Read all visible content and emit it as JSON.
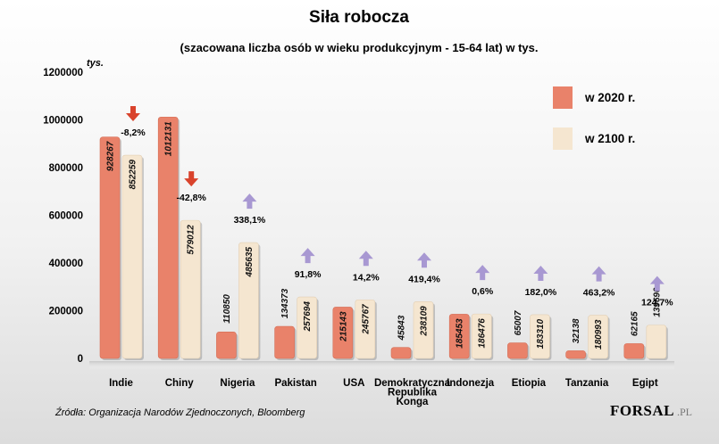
{
  "chart_data": {
    "type": "bar",
    "title": "Siła robocza",
    "subtitle": "(szacowana liczba osób w wieku produkcyjnym - 15-64 lat) w tys.",
    "ylabel": "tys.",
    "ylim": [
      0,
      1200000
    ],
    "yticks": [
      "0",
      "200000",
      "400000",
      "600000",
      "800000",
      "1000000",
      "1200000"
    ],
    "categories": [
      [
        "Indie"
      ],
      [
        "Chiny"
      ],
      [
        "Nigeria"
      ],
      [
        "Pakistan"
      ],
      [
        "USA"
      ],
      [
        "Demokratyczna",
        "Republika",
        "Konga"
      ],
      [
        "Indonezja"
      ],
      [
        "Etiopia"
      ],
      [
        "Tanzania"
      ],
      [
        "Egipt"
      ]
    ],
    "series": [
      {
        "name": "w 2020 r.",
        "color": "#e9826a",
        "values": [
          928267,
          1012131,
          110850,
          134373,
          215143,
          45843,
          185453,
          65007,
          32138,
          62165
        ],
        "labels": [
          "928267",
          "1012131",
          "110850",
          "134373",
          "215143",
          "45843",
          "185453",
          "65007",
          "32138",
          "62165"
        ]
      },
      {
        "name": "w 2100 r.",
        "color": "#f5e6d0",
        "values": [
          852259,
          579012,
          485635,
          257694,
          245767,
          238109,
          186476,
          183310,
          180993,
          139690
        ],
        "labels": [
          "852259",
          "579012",
          "485635",
          "257694",
          "245767",
          "238109",
          "186476",
          "183310",
          "180993",
          "139690"
        ]
      }
    ],
    "changes": [
      {
        "text": "-8,2%",
        "dir": "down"
      },
      {
        "text": "-42,8%",
        "dir": "down"
      },
      {
        "text": "338,1%",
        "dir": "up"
      },
      {
        "text": "91,8%",
        "dir": "up"
      },
      {
        "text": "14,2%",
        "dir": "up"
      },
      {
        "text": "419,4%",
        "dir": "up"
      },
      {
        "text": "0,6%",
        "dir": "up"
      },
      {
        "text": "182,0%",
        "dir": "up"
      },
      {
        "text": "463,2%",
        "dir": "up"
      },
      {
        "text": "124,7%",
        "dir": "up"
      }
    ],
    "arrow_colors": {
      "down": "#d9432c",
      "up": "#a898d2"
    }
  },
  "source": "Źródła: Organizacja Narodów Zjednoczonych, Bloomberg",
  "brand": {
    "name": "FORSAL",
    "suffix": ".PL"
  }
}
